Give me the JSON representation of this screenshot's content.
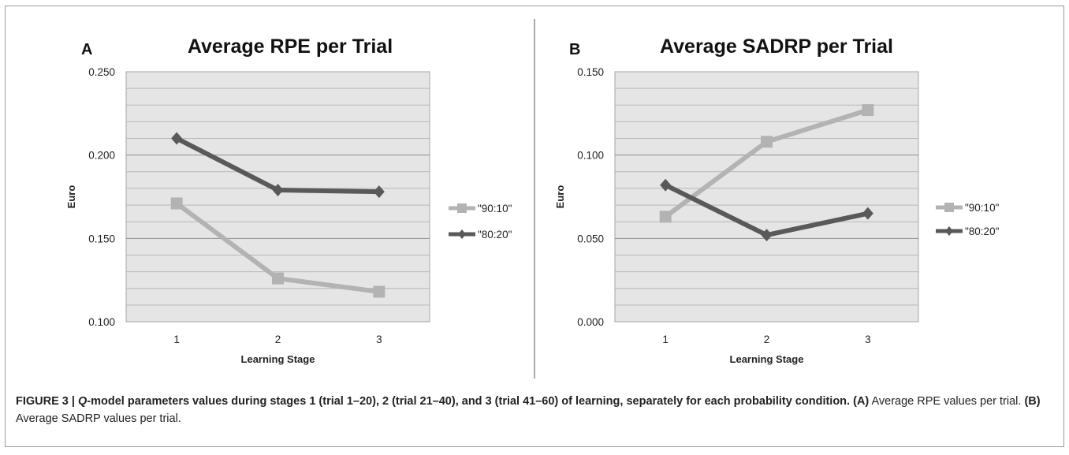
{
  "chart_data": [
    {
      "type": "line",
      "panel_label": "A",
      "title": "Average RPE per Trial",
      "xlabel": "Learning Stage",
      "ylabel": "Euro",
      "categories": [
        "1",
        "2",
        "3"
      ],
      "ylim": [
        0.1,
        0.25
      ],
      "yticks": [
        "0.100",
        "0.150",
        "0.200",
        "0.250"
      ],
      "grid": true,
      "legend_position": "right",
      "series": [
        {
          "name": "\"90:10\"",
          "values": [
            0.171,
            0.126,
            0.118
          ],
          "marker": "square",
          "color": "#b3b3b3"
        },
        {
          "name": "\"80:20\"",
          "values": [
            0.21,
            0.179,
            0.178
          ],
          "marker": "diamond",
          "color": "#595959"
        }
      ]
    },
    {
      "type": "line",
      "panel_label": "B",
      "title": "Average SADRP per Trial",
      "xlabel": "Learning Stage",
      "ylabel": "Euro",
      "categories": [
        "1",
        "2",
        "3"
      ],
      "ylim": [
        0.0,
        0.15
      ],
      "yticks": [
        "0.000",
        "0.050",
        "0.100",
        "0.150"
      ],
      "grid": true,
      "legend_position": "right",
      "series": [
        {
          "name": "\"90:10\"",
          "values": [
            0.063,
            0.108,
            0.127
          ],
          "marker": "square",
          "color": "#b3b3b3"
        },
        {
          "name": "\"80:20\"",
          "values": [
            0.082,
            0.052,
            0.065
          ],
          "marker": "diamond",
          "color": "#595959"
        }
      ]
    }
  ],
  "caption": {
    "bold_prefix": "FIGURE 3 | ",
    "q_letter": "Q",
    "bold_rest": "-model parameters values during stages 1 (trial 1–20), 2 (trial 21–40), and 3 (trial 41–60) of learning, separately for each probability condition.",
    "label_a": "(A)",
    "text_a": " Average RPE values per trial. ",
    "label_b": "(B)",
    "text_b": " Average SADRP values per trial."
  }
}
